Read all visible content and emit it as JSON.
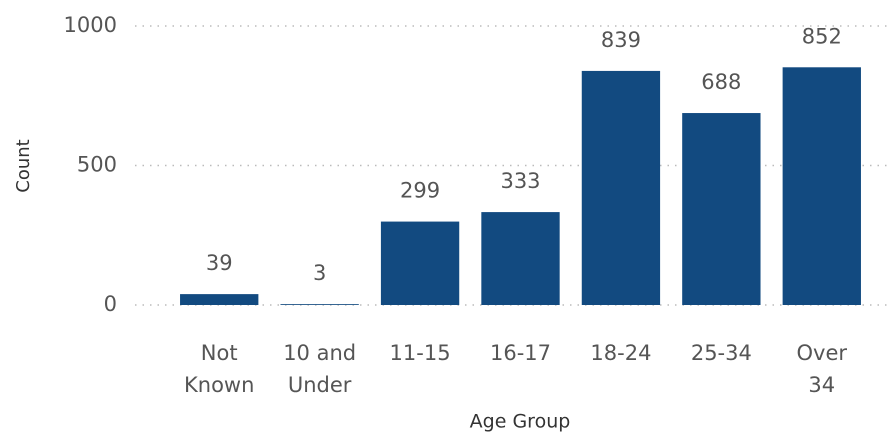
{
  "chart_data": {
    "type": "bar",
    "x_label": "Age Group",
    "y_label": "Count",
    "categories": [
      "Not Known",
      "10 and Under",
      "11-15",
      "16-17",
      "18-24",
      "25-34",
      "Over 34"
    ],
    "values": [
      39,
      3,
      299,
      333,
      839,
      688,
      852
    ],
    "color": "#124a80",
    "ylim": [
      0,
      1000
    ],
    "yticks": [
      0,
      500,
      1000
    ],
    "grid": true
  }
}
